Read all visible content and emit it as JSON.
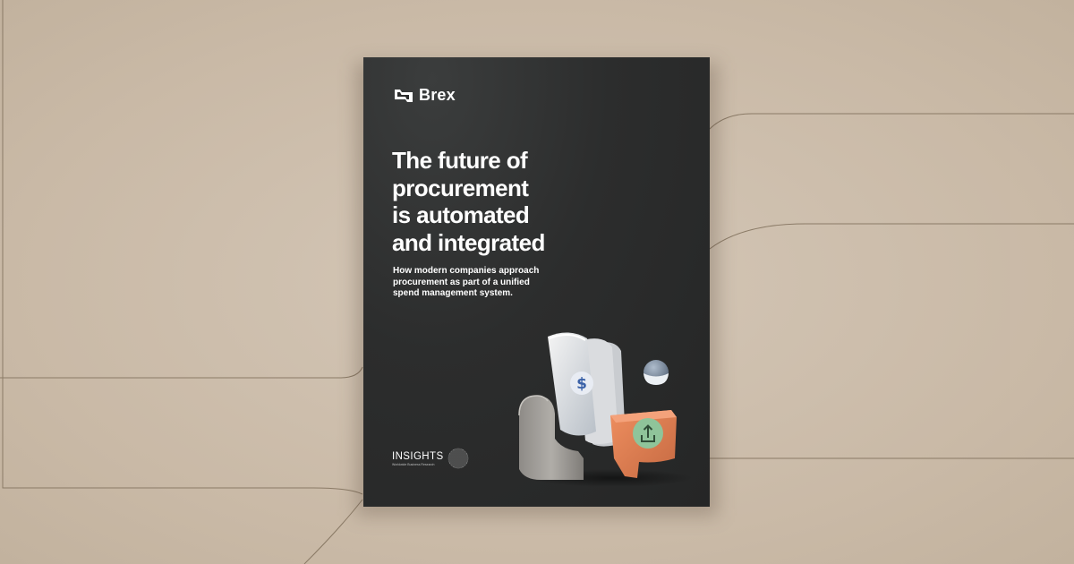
{
  "background": {
    "color": "#cdbfae",
    "line_color": "#8a7a66"
  },
  "cover": {
    "color": "#2b2c2c",
    "brand": {
      "name": "Brex",
      "icon": "brex-logo-icon"
    },
    "headline": [
      "The future of",
      "procurement",
      "is automated",
      "and integrated"
    ],
    "subtitle": [
      "How modern companies approach",
      "procurement as part of a unified",
      "spend management system."
    ],
    "publisher": {
      "name": "INSIGHTS",
      "tagline": "Worldwide Business Research",
      "icon": "globe-icon"
    },
    "illustration": {
      "icons": [
        "dollar-sign-icon",
        "upload-icon"
      ],
      "colors": {
        "arch": "#9a9793",
        "bill": "#dcdedf",
        "box": "#d97a4f",
        "badge": "#8fc49a",
        "sphere": "#7d8c9e"
      }
    }
  }
}
